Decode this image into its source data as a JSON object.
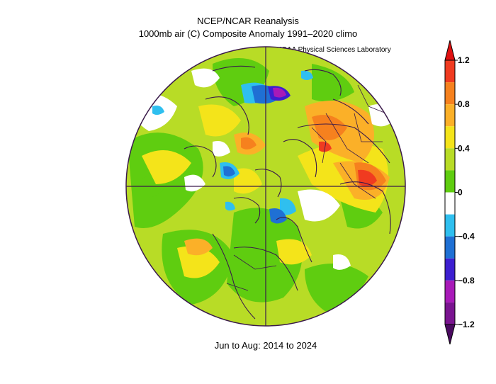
{
  "header": {
    "title_line1": "NCEP/NCAR Reanalysis",
    "title_line2": "1000mb air (C) Composite Anomaly 1991–2020 climo",
    "attribution": "NOAA Physical Sciences Laboratory"
  },
  "footer": {
    "period": "Jun to Aug: 2014 to 2024"
  },
  "colorbar": {
    "tick_labels": [
      "1.2",
      "0.8",
      "0.4",
      "0",
      "−0.4",
      "−0.8",
      "−1.2"
    ],
    "tick_values": [
      1.2,
      0.8,
      0.4,
      0,
      -0.4,
      -0.8,
      -1.2
    ],
    "bins": [
      {
        "min": 1.0,
        "max": 1.2,
        "color": "#f03b20"
      },
      {
        "min": 0.8,
        "max": 1.0,
        "color": "#f6811e"
      },
      {
        "min": 0.6,
        "max": 0.8,
        "color": "#fbb028"
      },
      {
        "min": 0.4,
        "max": 0.6,
        "color": "#f4e41a"
      },
      {
        "min": 0.2,
        "max": 0.4,
        "color": "#b8dc26"
      },
      {
        "min": 0.0,
        "max": 0.2,
        "color": "#5fcd10"
      },
      {
        "min": -0.2,
        "max": 0.0,
        "color": "#ffffff"
      },
      {
        "min": -0.4,
        "max": -0.2,
        "color": "#2fbfef"
      },
      {
        "min": -0.6,
        "max": -0.4,
        "color": "#1f70d4"
      },
      {
        "min": -0.8,
        "max": -0.6,
        "color": "#3d1fd0"
      },
      {
        "min": -1.0,
        "max": -0.8,
        "color": "#a81ab8"
      },
      {
        "min": -1.2,
        "max": -1.0,
        "color": "#7a1490"
      }
    ],
    "over_color": "#e01010",
    "under_color": "#4a0a60"
  },
  "map": {
    "projection": "north-polar-stereographic",
    "base_color": "#b8dc26",
    "outline_color": "#3a1a4a"
  }
}
